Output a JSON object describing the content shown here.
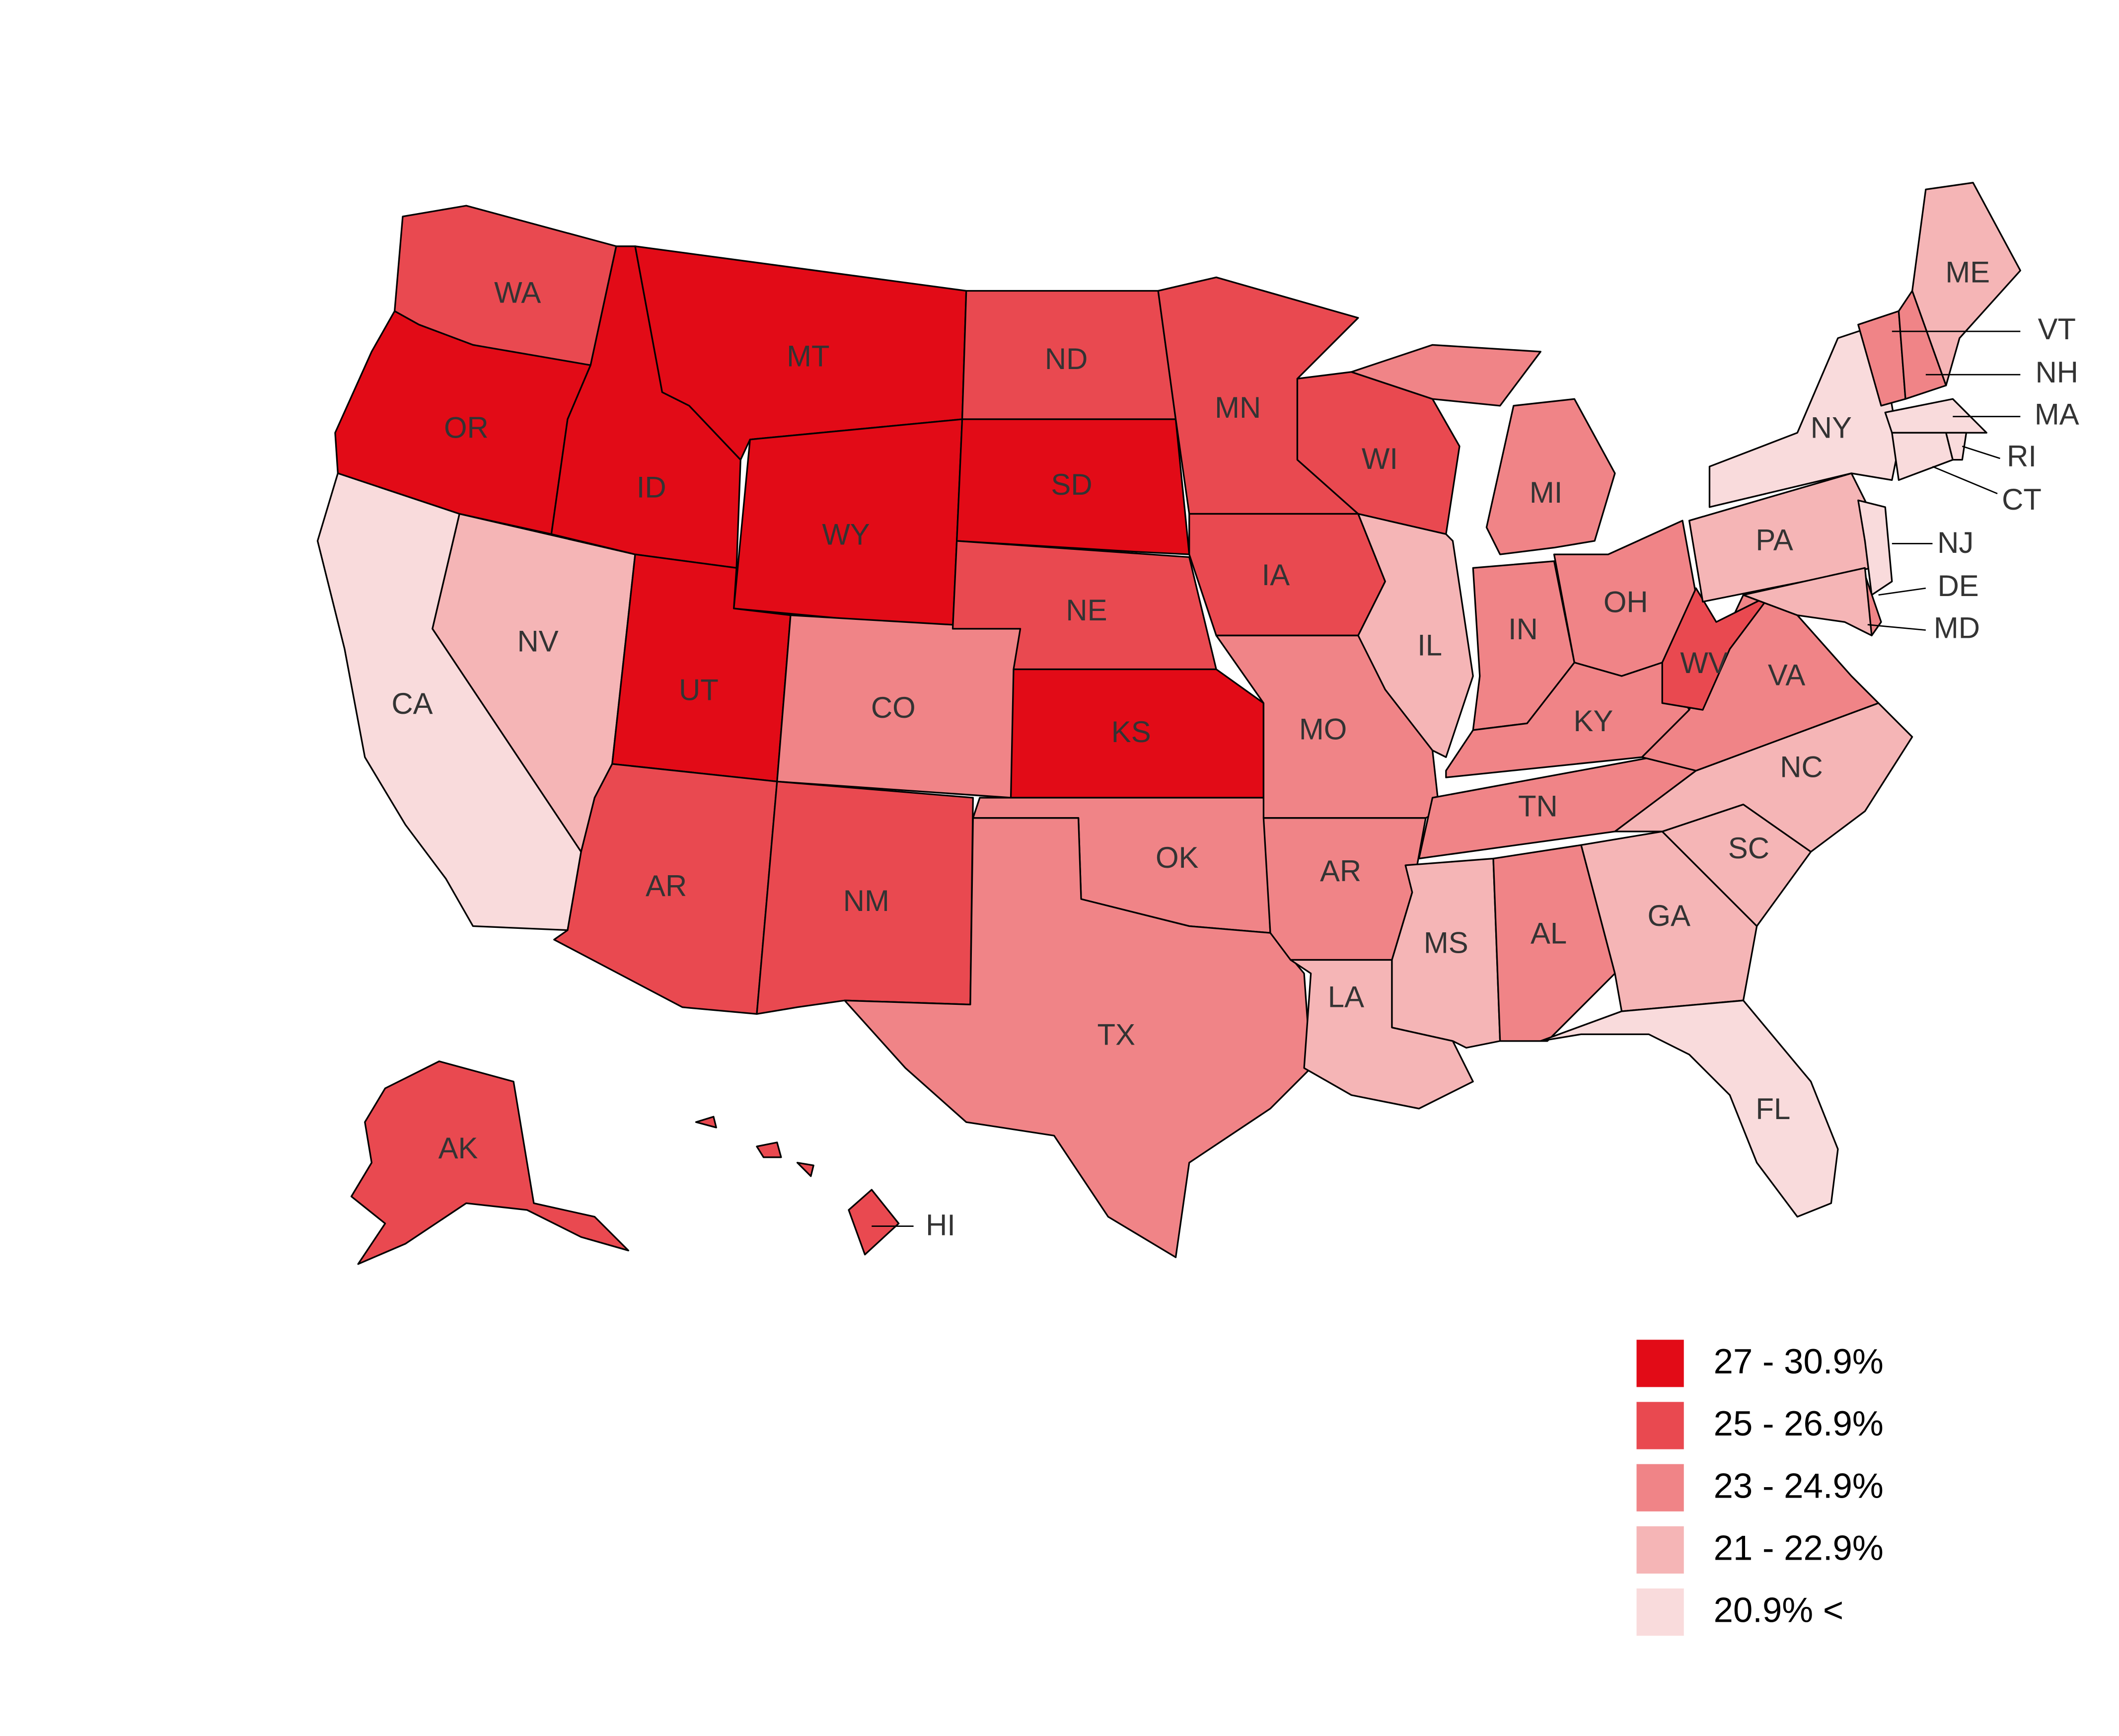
{
  "states": [
    {
      "label": "WA",
      "color": "#e94950"
    },
    {
      "label": "OR",
      "color": "#e20b17"
    },
    {
      "label": "CA",
      "color": "#f9dbdc"
    },
    {
      "label": "NV",
      "color": "#f5b5b6"
    },
    {
      "label": "ID",
      "color": "#e20b17"
    },
    {
      "label": "MT",
      "color": "#e20b17"
    },
    {
      "label": "WY",
      "color": "#e20b17"
    },
    {
      "label": "UT",
      "color": "#e20b17"
    },
    {
      "label": "AR",
      "color": "#e94950"
    },
    {
      "label": "CO",
      "color": "#f08487"
    },
    {
      "label": "NM",
      "color": "#e94950"
    },
    {
      "label": "ND",
      "color": "#e94950"
    },
    {
      "label": "SD",
      "color": "#e20b17"
    },
    {
      "label": "NE",
      "color": "#e94950"
    },
    {
      "label": "KS",
      "color": "#e20b17"
    },
    {
      "label": "OK",
      "color": "#f08487"
    },
    {
      "label": "TX",
      "color": "#f08487"
    },
    {
      "label": "MN",
      "color": "#e94950"
    },
    {
      "label": "IA",
      "color": "#e94950"
    },
    {
      "label": "MO",
      "color": "#f08487"
    },
    {
      "label": "AR",
      "color": "#f08487"
    },
    {
      "label": "LA",
      "color": "#f5b5b6"
    },
    {
      "label": "WI",
      "color": "#e94950"
    },
    {
      "label": "IL",
      "color": "#f5b5b6"
    },
    {
      "label": "MI",
      "color": "#f08487"
    },
    {
      "label": "IN",
      "color": "#f08487"
    },
    {
      "label": "OH",
      "color": "#f08487"
    },
    {
      "label": "KY",
      "color": "#f08487"
    },
    {
      "label": "TN",
      "color": "#f08487"
    },
    {
      "label": "MS",
      "color": "#f5b5b6"
    },
    {
      "label": "AL",
      "color": "#f08487"
    },
    {
      "label": "GA",
      "color": "#f5b5b6"
    },
    {
      "label": "FL",
      "color": "#f9dbdc"
    },
    {
      "label": "SC",
      "color": "#f5b5b6"
    },
    {
      "label": "NC",
      "color": "#f5b5b6"
    },
    {
      "label": "VA",
      "color": "#f08487"
    },
    {
      "label": "WV",
      "color": "#e94950"
    },
    {
      "label": "PA",
      "color": "#f5b5b6"
    },
    {
      "label": "NY",
      "color": "#f9dbdc"
    },
    {
      "label": "NJ",
      "color": "#f9dbdc"
    },
    {
      "label": "DE",
      "color": "#f08487"
    },
    {
      "label": "MD",
      "color": "#f5b5b6"
    },
    {
      "label": "VT",
      "color": "#f08487"
    },
    {
      "label": "NH",
      "color": "#f08487"
    },
    {
      "label": "ME",
      "color": "#f5b5b6"
    },
    {
      "label": "MA",
      "color": "#f9dbdc"
    },
    {
      "label": "CT",
      "color": "#f9dbdc"
    },
    {
      "label": "RI",
      "color": "#f9dbdc"
    },
    {
      "label": "AK",
      "color": "#e94950"
    },
    {
      "label": "HI",
      "color": "#e94950"
    }
  ],
  "legend": [
    {
      "label": "27 - 30.9%",
      "color": "#e20b17"
    },
    {
      "label": "25 - 26.9%",
      "color": "#e94950"
    },
    {
      "label": "23 - 24.9%",
      "color": "#f08487"
    },
    {
      "label": "21 - 22.9%",
      "color": "#f5b5b6"
    },
    {
      "label": "20.9% <",
      "color": "#f9dbdc"
    }
  ]
}
